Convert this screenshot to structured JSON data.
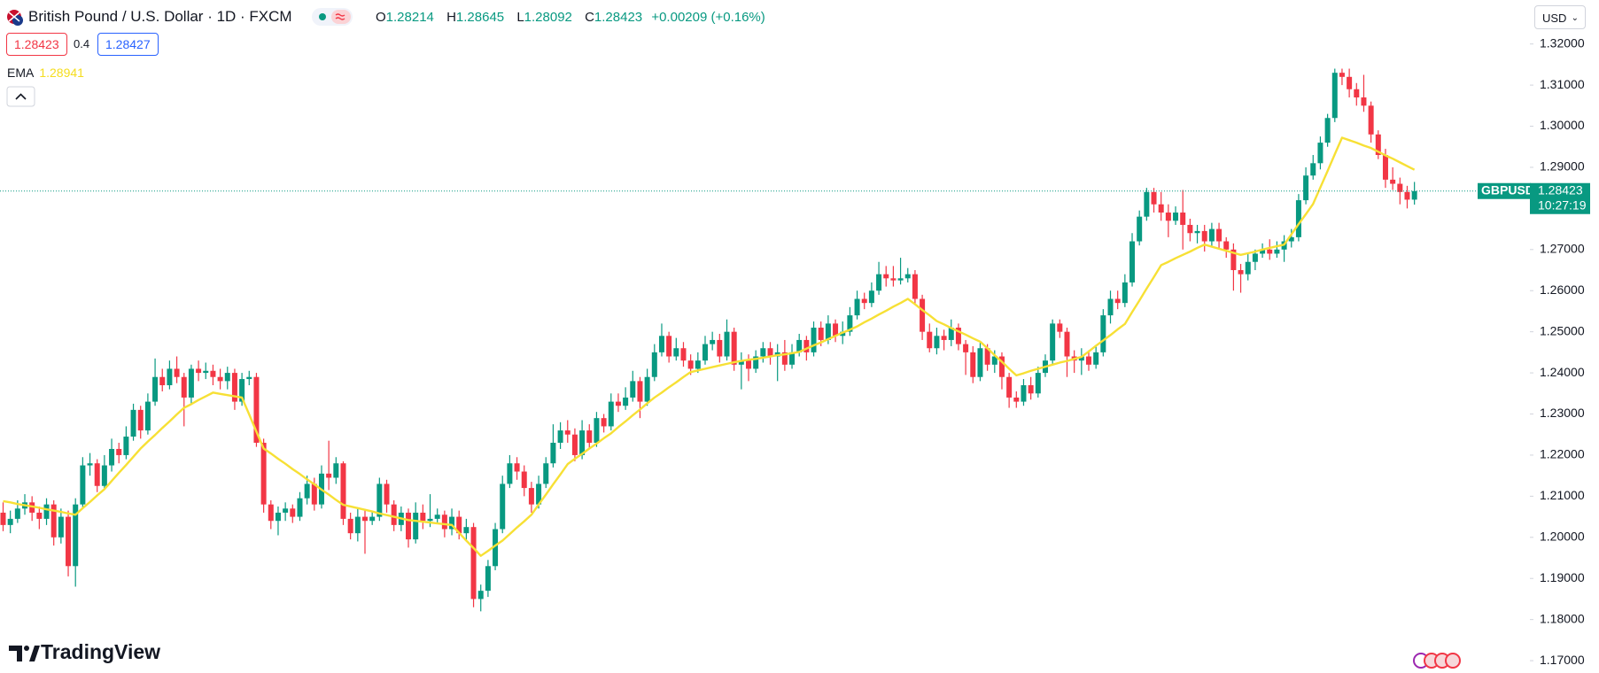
{
  "header": {
    "symbol_title": "British Pound / U.S. Dollar · 1D · FXCM",
    "o_label": "O",
    "h_label": "H",
    "l_label": "L",
    "c_label": "C",
    "change": "+0.00209 (+0.16%)"
  },
  "trade": {
    "spread": "0.4",
    "buy": "1.28427"
  },
  "currency": "USD",
  "price_label": {
    "symbol": "GBPUSD",
    "countdown": "10:27:19"
  },
  "brand": "TradingView",
  "chart_data": {
    "type": "candlestick",
    "up_color": "#089981",
    "down_color": "#f23645",
    "grid": false,
    "last_price_line": true,
    "ylim": [
      1.167,
      1.3307
    ],
    "yticks": [
      {
        "value": 1.17,
        "label": "1.17000"
      },
      {
        "value": 1.18,
        "label": "1.18000"
      },
      {
        "value": 1.19,
        "label": "1.19000"
      },
      {
        "value": 1.2,
        "label": "1.20000"
      },
      {
        "value": 1.21,
        "label": "1.21000"
      },
      {
        "value": 1.22,
        "label": "1.22000"
      },
      {
        "value": 1.23,
        "label": "1.23000"
      },
      {
        "value": 1.24,
        "label": "1.24000"
      },
      {
        "value": 1.25,
        "label": "1.25000"
      },
      {
        "value": 1.26,
        "label": "1.26000"
      },
      {
        "value": 1.27,
        "label": "1.27000"
      },
      {
        "value": 1.28,
        "label": "1.28000"
      },
      {
        "value": 1.29,
        "label": "1.29000"
      },
      {
        "value": 1.3,
        "label": "1.30000"
      },
      {
        "value": 1.31,
        "label": "1.31000"
      },
      {
        "value": 1.32,
        "label": "1.32000"
      }
    ],
    "open": [
      1.206,
      1.203,
      1.2045,
      1.207,
      1.2085,
      1.206,
      1.2045,
      1.208,
      1.2,
      1.205,
      1.193,
      1.208,
      1.2175,
      1.218,
      1.2125,
      1.2175,
      1.2215,
      1.22,
      1.2245,
      1.231,
      1.226,
      1.233,
      1.239,
      1.237,
      1.241,
      1.239,
      1.234,
      1.241,
      1.24,
      1.2405,
      1.239,
      1.238,
      1.24,
      1.233,
      1.2385,
      1.239,
      1.223,
      1.208,
      1.204,
      1.206,
      1.207,
      1.205,
      1.2095,
      1.213,
      1.208,
      1.2155,
      1.2145,
      1.218,
      1.2045,
      1.201,
      1.205,
      1.204,
      1.205,
      1.213,
      1.208,
      1.203,
      1.206,
      1.1995,
      1.206,
      1.204,
      1.2045,
      1.2055,
      1.202,
      1.205,
      1.201,
      1.2025,
      1.185,
      1.187,
      1.193,
      1.202,
      1.213,
      1.218,
      1.216,
      1.212,
      1.208,
      1.213,
      1.218,
      1.223,
      1.226,
      1.225,
      1.22,
      1.226,
      1.223,
      1.229,
      1.227,
      1.233,
      1.232,
      1.234,
      1.238,
      1.233,
      1.239,
      1.245,
      1.249,
      1.244,
      1.246,
      1.243,
      1.241,
      1.243,
      1.247,
      1.248,
      1.244,
      1.25,
      1.242,
      1.243,
      1.241,
      1.244,
      1.246,
      1.244,
      1.245,
      1.242,
      1.245,
      1.248,
      1.245,
      1.251,
      1.248,
      1.252,
      1.249,
      1.25,
      1.254,
      1.258,
      1.257,
      1.26,
      1.264,
      1.263,
      1.2625,
      1.263,
      1.264,
      1.258,
      1.25,
      1.246,
      1.249,
      1.248,
      1.251,
      1.247,
      1.245,
      1.239,
      1.246,
      1.242,
      1.244,
      1.239,
      1.234,
      1.233,
      1.237,
      1.235,
      1.24,
      1.243,
      1.252,
      1.25,
      1.244,
      1.243,
      1.244,
      1.242,
      1.245,
      1.254,
      1.258,
      1.257,
      1.262,
      1.272,
      1.278,
      1.284,
      1.281,
      1.279,
      1.277,
      1.279,
      1.276,
      1.274,
      1.2745,
      1.272,
      1.275,
      1.272,
      1.27,
      1.265,
      1.264,
      1.267,
      1.269,
      1.27,
      1.269,
      1.27,
      1.272,
      1.273,
      1.282,
      1.288,
      1.291,
      1.296,
      1.302,
      1.313,
      1.312,
      1.309,
      1.307,
      1.305,
      1.298,
      1.293,
      1.287,
      1.286,
      1.284,
      1.28214
    ],
    "high": [
      1.2085,
      1.2065,
      1.209,
      1.2105,
      1.21,
      1.2075,
      1.2095,
      1.209,
      1.207,
      1.2065,
      1.2095,
      1.2195,
      1.2205,
      1.219,
      1.22,
      1.224,
      1.223,
      1.227,
      1.2325,
      1.232,
      1.235,
      1.2435,
      1.241,
      1.243,
      1.244,
      1.24,
      1.242,
      1.243,
      1.2425,
      1.242,
      1.241,
      1.2415,
      1.241,
      1.24,
      1.2405,
      1.24,
      1.224,
      1.209,
      1.2075,
      1.2085,
      1.208,
      1.211,
      1.215,
      1.2145,
      1.2175,
      1.2235,
      1.2195,
      1.2185,
      1.206,
      1.207,
      1.2065,
      1.2065,
      1.2145,
      1.214,
      1.209,
      1.2075,
      1.207,
      1.2085,
      1.208,
      1.2105,
      1.207,
      1.2065,
      1.207,
      1.2065,
      1.2045,
      1.2035,
      1.1885,
      1.1945,
      1.2035,
      1.215,
      1.22,
      1.2195,
      1.2175,
      1.2135,
      1.215,
      1.2195,
      1.2275,
      1.228,
      1.2285,
      1.2265,
      1.2285,
      1.2275,
      1.2305,
      1.23,
      1.235,
      1.235,
      1.2365,
      1.2405,
      1.239,
      1.241,
      1.247,
      1.252,
      1.25,
      1.2485,
      1.2475,
      1.2445,
      1.245,
      1.249,
      1.25,
      1.2495,
      1.253,
      1.251,
      1.245,
      1.2445,
      1.2455,
      1.2475,
      1.2475,
      1.247,
      1.248,
      1.247,
      1.2495,
      1.249,
      1.2525,
      1.2525,
      1.254,
      1.253,
      1.2525,
      1.256,
      1.26,
      1.2595,
      1.262,
      1.267,
      1.266,
      1.266,
      1.268,
      1.2655,
      1.265,
      1.259,
      1.252,
      1.251,
      1.2505,
      1.253,
      1.252,
      1.248,
      1.2465,
      1.2475,
      1.247,
      1.2455,
      1.245,
      1.24,
      1.2355,
      1.2385,
      1.239,
      1.2415,
      1.2445,
      1.253,
      1.253,
      1.251,
      1.2455,
      1.246,
      1.2455,
      1.2465,
      1.2555,
      1.26,
      1.26,
      1.264,
      1.274,
      1.2795,
      1.285,
      1.285,
      1.284,
      1.281,
      1.2805,
      1.2845,
      1.2775,
      1.276,
      1.276,
      1.2765,
      1.2765,
      1.273,
      1.2715,
      1.2665,
      1.269,
      1.27,
      1.2715,
      1.2725,
      1.272,
      1.2735,
      1.275,
      1.2835,
      1.29,
      1.293,
      1.2975,
      1.303,
      1.314,
      1.314,
      1.314,
      1.3105,
      1.3125,
      1.306,
      1.299,
      1.2945,
      1.29,
      1.2875,
      1.2855,
      1.28645
    ],
    "low": [
      1.2015,
      1.201,
      1.2035,
      1.2055,
      1.204,
      1.202,
      1.203,
      1.198,
      1.1985,
      1.1905,
      1.188,
      1.207,
      1.215,
      1.211,
      1.2115,
      1.216,
      1.218,
      1.219,
      1.2235,
      1.224,
      1.225,
      1.232,
      1.2355,
      1.236,
      1.2375,
      1.227,
      1.2325,
      1.238,
      1.2385,
      1.237,
      1.236,
      1.236,
      1.231,
      1.232,
      1.237,
      1.222,
      1.206,
      1.202,
      1.2005,
      1.204,
      1.2035,
      1.204,
      1.208,
      1.2065,
      1.207,
      1.2115,
      1.213,
      1.203,
      1.1995,
      1.199,
      1.196,
      1.203,
      1.204,
      1.206,
      1.2015,
      1.2015,
      1.1975,
      1.1985,
      1.202,
      1.2025,
      1.2035,
      1.2,
      1.2005,
      1.1995,
      1.199,
      1.183,
      1.182,
      1.1855,
      1.192,
      1.201,
      1.212,
      1.214,
      1.21,
      1.206,
      1.207,
      1.212,
      1.217,
      1.2215,
      1.223,
      1.2185,
      1.219,
      1.2215,
      1.222,
      1.2255,
      1.226,
      1.2305,
      1.231,
      1.233,
      1.229,
      1.232,
      1.238,
      1.244,
      1.2425,
      1.243,
      1.2415,
      1.2395,
      1.24,
      1.242,
      1.2455,
      1.2425,
      1.243,
      1.2405,
      1.236,
      1.238,
      1.24,
      1.2425,
      1.242,
      1.238,
      1.2405,
      1.241,
      1.244,
      1.243,
      1.244,
      1.2465,
      1.247,
      1.2475,
      1.247,
      1.249,
      1.253,
      1.2555,
      1.256,
      1.259,
      1.261,
      1.261,
      1.2615,
      1.262,
      1.2565,
      1.248,
      1.245,
      1.2445,
      1.2455,
      1.2465,
      1.2455,
      1.2395,
      1.2375,
      1.238,
      1.2405,
      1.24,
      1.236,
      1.2315,
      1.2315,
      1.232,
      1.2335,
      1.234,
      1.239,
      1.242,
      1.2485,
      1.239,
      1.24,
      1.2395,
      1.2405,
      1.241,
      1.244,
      1.252,
      1.2555,
      1.256,
      1.261,
      1.271,
      1.277,
      1.279,
      1.277,
      1.273,
      1.276,
      1.27,
      1.272,
      1.2715,
      1.2695,
      1.2705,
      1.27,
      1.268,
      1.26,
      1.2595,
      1.2625,
      1.265,
      1.268,
      1.2675,
      1.268,
      1.267,
      1.2705,
      1.272,
      1.281,
      1.287,
      1.2895,
      1.295,
      1.301,
      1.31,
      1.307,
      1.305,
      1.3035,
      1.296,
      1.292,
      1.285,
      1.2845,
      1.281,
      1.28,
      1.28092
    ],
    "close": [
      1.203,
      1.2045,
      1.207,
      1.2085,
      1.206,
      1.2045,
      1.208,
      1.2,
      1.205,
      1.193,
      1.208,
      1.2175,
      1.218,
      1.2125,
      1.2175,
      1.2215,
      1.22,
      1.2245,
      1.231,
      1.226,
      1.233,
      1.239,
      1.237,
      1.241,
      1.239,
      1.234,
      1.241,
      1.24,
      1.2405,
      1.239,
      1.238,
      1.24,
      1.233,
      1.2385,
      1.239,
      1.223,
      1.208,
      1.204,
      1.206,
      1.207,
      1.205,
      1.2095,
      1.213,
      1.208,
      1.2155,
      1.2145,
      1.218,
      1.2045,
      1.201,
      1.205,
      1.204,
      1.205,
      1.213,
      1.208,
      1.203,
      1.206,
      1.1995,
      1.206,
      1.204,
      1.2045,
      1.2055,
      1.202,
      1.205,
      1.201,
      1.2025,
      1.185,
      1.187,
      1.193,
      1.202,
      1.213,
      1.218,
      1.216,
      1.212,
      1.208,
      1.213,
      1.218,
      1.223,
      1.226,
      1.225,
      1.22,
      1.226,
      1.223,
      1.229,
      1.227,
      1.233,
      1.232,
      1.234,
      1.238,
      1.233,
      1.239,
      1.245,
      1.249,
      1.244,
      1.246,
      1.243,
      1.241,
      1.243,
      1.247,
      1.248,
      1.244,
      1.25,
      1.242,
      1.243,
      1.241,
      1.244,
      1.246,
      1.244,
      1.245,
      1.242,
      1.245,
      1.248,
      1.245,
      1.251,
      1.248,
      1.252,
      1.249,
      1.25,
      1.254,
      1.258,
      1.257,
      1.26,
      1.264,
      1.263,
      1.2625,
      1.263,
      1.264,
      1.258,
      1.25,
      1.246,
      1.249,
      1.248,
      1.251,
      1.247,
      1.245,
      1.239,
      1.246,
      1.242,
      1.244,
      1.239,
      1.234,
      1.233,
      1.237,
      1.235,
      1.24,
      1.243,
      1.252,
      1.25,
      1.244,
      1.243,
      1.244,
      1.242,
      1.245,
      1.254,
      1.258,
      1.257,
      1.262,
      1.272,
      1.278,
      1.284,
      1.281,
      1.279,
      1.277,
      1.279,
      1.276,
      1.274,
      1.2745,
      1.272,
      1.275,
      1.272,
      1.27,
      1.265,
      1.264,
      1.267,
      1.269,
      1.27,
      1.269,
      1.27,
      1.272,
      1.273,
      1.282,
      1.288,
      1.291,
      1.296,
      1.302,
      1.313,
      1.312,
      1.309,
      1.307,
      1.305,
      1.298,
      1.293,
      1.287,
      1.286,
      1.284,
      1.28214,
      1.28423
    ],
    "series": [
      {
        "name": "EMA",
        "color": "#f7e035",
        "values": [
          1.2088,
          1.2085,
          1.2081,
          1.2078,
          1.2075,
          1.2072,
          1.2068,
          1.2065,
          1.2062,
          1.2058,
          1.2055,
          1.2071,
          1.2086,
          1.2102,
          1.2117,
          1.2137,
          1.2157,
          1.2176,
          1.2196,
          1.2216,
          1.2233,
          1.2249,
          1.2266,
          1.2282,
          1.2299,
          1.2315,
          1.2324,
          1.2334,
          1.2343,
          1.2352,
          1.2349,
          1.2346,
          1.2343,
          1.234,
          1.2299,
          1.2257,
          1.2216,
          1.2204,
          1.2191,
          1.2179,
          1.2166,
          1.2154,
          1.2141,
          1.2129,
          1.2116,
          1.2104,
          1.2091,
          1.2079,
          1.2075,
          1.2071,
          1.2067,
          1.2063,
          1.2058,
          1.2054,
          1.205,
          1.2046,
          1.2042,
          1.204,
          1.2038,
          1.2036,
          1.2034,
          1.2032,
          1.203,
          1.2011,
          1.1992,
          1.1974,
          1.1955,
          1.1967,
          1.198,
          1.1992,
          1.2008,
          1.2024,
          1.2039,
          1.2055,
          1.208,
          1.2104,
          1.2129,
          1.2153,
          1.2178,
          1.2191,
          1.2203,
          1.2216,
          1.2228,
          1.2241,
          1.2253,
          1.2268,
          1.2282,
          1.2297,
          1.2311,
          1.2326,
          1.234,
          1.2352,
          1.2365,
          1.2377,
          1.239,
          1.2402,
          1.2406,
          1.241,
          1.2414,
          1.2418,
          1.2422,
          1.2426,
          1.2429,
          1.2432,
          1.2434,
          1.2437,
          1.244,
          1.2443,
          1.2445,
          1.2448,
          1.2451,
          1.2459,
          1.2467,
          1.2474,
          1.2482,
          1.249,
          1.2498,
          1.2505,
          1.2513,
          1.2523,
          1.2532,
          1.2542,
          1.2551,
          1.2561,
          1.257,
          1.258,
          1.2567,
          1.2553,
          1.254,
          1.2526,
          1.2518,
          1.2509,
          1.2501,
          1.2493,
          1.2484,
          1.2476,
          1.246,
          1.2443,
          1.2427,
          1.241,
          1.2394,
          1.2399,
          1.2405,
          1.241,
          1.2415,
          1.242,
          1.2425,
          1.2429,
          1.2434,
          1.2439,
          1.2452,
          1.2466,
          1.2479,
          1.2492,
          1.2506,
          1.2519,
          1.2548,
          1.2576,
          1.2605,
          1.2633,
          1.2662,
          1.267,
          1.2679,
          1.2687,
          1.2695,
          1.2704,
          1.2712,
          1.2707,
          1.2702,
          1.2697,
          1.2692,
          1.2687,
          1.2691,
          1.2695,
          1.27,
          1.2704,
          1.2708,
          1.2712,
          1.2737,
          1.2762,
          1.2786,
          1.2811,
          1.2851,
          1.2891,
          1.2932,
          1.2972,
          1.2966,
          1.296,
          1.2953,
          1.2947,
          1.2938,
          1.2929,
          1.2921,
          1.2912,
          1.2903,
          1.28941
        ]
      }
    ]
  }
}
